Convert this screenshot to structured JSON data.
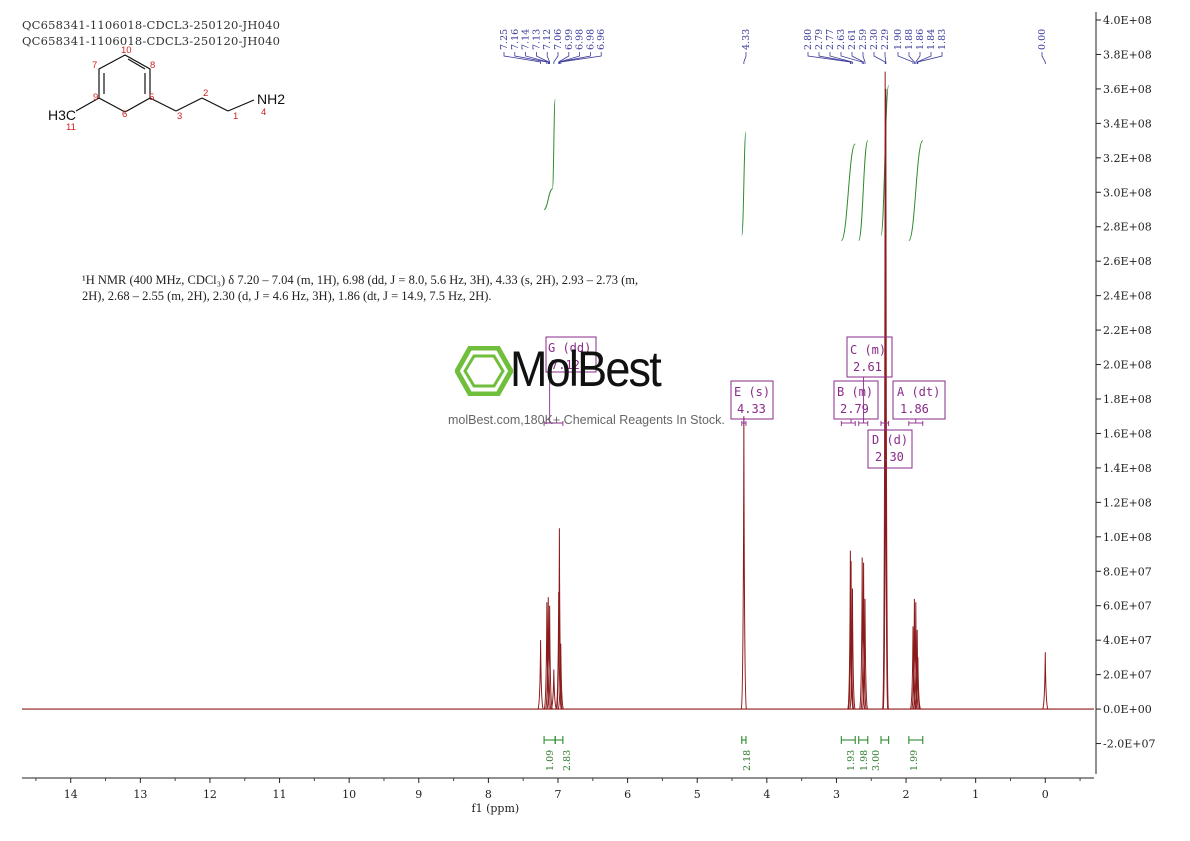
{
  "header": {
    "line1": "QC658341-1106018-CDCL3-250120-JH040",
    "line2": "QC658341-1106018-CDCL3-250120-JH040"
  },
  "molecule": {
    "atoms": [
      {
        "id": "h3c",
        "label": "H3C"
      },
      {
        "id": "nh2",
        "label": "NH2"
      }
    ],
    "numbers": [
      "10",
      "7",
      "8",
      "9",
      "5",
      "6",
      "3",
      "2",
      "1",
      "4",
      "11"
    ]
  },
  "nmr_text": "¹H NMR (400 MHz, CDCl₃) δ 7.20 – 7.04 (m, 1H), 6.98 (dd, J = 8.0, 5.6 Hz, 3H), 4.33 (s, 2H), 2.93 – 2.73 (m, 2H), 2.68 – 2.55 (m, 2H), 2.30 (d, J = 4.6 Hz, 3H), 1.86 (dt, J = 14.9, 7.5 Hz, 2H).",
  "watermark": {
    "brand": "MolBest",
    "line": "molBest.com,180K+ Chemical Reagents In Stock."
  },
  "colors": {
    "spectrum": "#8b1a1a",
    "integral": "#2e8b2e",
    "multiplet": "#8a2b8a",
    "peak_label": "#3a3a9a",
    "logo_green": "#6fbe3c"
  },
  "chart_data": {
    "type": "line",
    "title": "",
    "xlabel": "f1 (ppm)",
    "ylabel": "",
    "xlim": [
      14.7,
      -0.7
    ],
    "ylim": [
      -40000000,
      400000000
    ],
    "x_ticks": [
      14,
      13,
      12,
      11,
      10,
      9,
      8,
      7,
      6,
      5,
      4,
      3,
      2,
      1,
      0
    ],
    "y_ticks": [
      {
        "v": 400000000,
        "label": "4.0E+08"
      },
      {
        "v": 380000000,
        "label": "3.8E+08"
      },
      {
        "v": 360000000,
        "label": "3.6E+08"
      },
      {
        "v": 340000000,
        "label": "3.4E+08"
      },
      {
        "v": 320000000,
        "label": "3.2E+08"
      },
      {
        "v": 300000000,
        "label": "3.0E+08"
      },
      {
        "v": 280000000,
        "label": "2.8E+08"
      },
      {
        "v": 260000000,
        "label": "2.6E+08"
      },
      {
        "v": 240000000,
        "label": "2.4E+08"
      },
      {
        "v": 220000000,
        "label": "2.2E+08"
      },
      {
        "v": 200000000,
        "label": "2.0E+08"
      },
      {
        "v": 180000000,
        "label": "1.8E+08"
      },
      {
        "v": 160000000,
        "label": "1.6E+08"
      },
      {
        "v": 140000000,
        "label": "1.4E+08"
      },
      {
        "v": 120000000,
        "label": "1.2E+08"
      },
      {
        "v": 100000000,
        "label": "1.0E+08"
      },
      {
        "v": 80000000,
        "label": "8.0E+07"
      },
      {
        "v": 60000000,
        "label": "6.0E+07"
      },
      {
        "v": 40000000,
        "label": "4.0E+07"
      },
      {
        "v": 20000000,
        "label": "2.0E+07"
      },
      {
        "v": 0,
        "label": "0.0E+00"
      },
      {
        "v": -20000000,
        "label": "-2.0E+07"
      }
    ],
    "peaks": [
      {
        "ppm": 7.25,
        "h": 40000000
      },
      {
        "ppm": 7.16,
        "h": 62000000
      },
      {
        "ppm": 7.14,
        "h": 65000000
      },
      {
        "ppm": 7.12,
        "h": 60000000
      },
      {
        "ppm": 7.06,
        "h": 23000000
      },
      {
        "ppm": 6.99,
        "h": 68000000
      },
      {
        "ppm": 6.98,
        "h": 105000000
      },
      {
        "ppm": 6.96,
        "h": 38000000
      },
      {
        "ppm": 4.33,
        "h": 170000000
      },
      {
        "ppm": 2.8,
        "h": 92000000
      },
      {
        "ppm": 2.79,
        "h": 86000000
      },
      {
        "ppm": 2.77,
        "h": 70000000
      },
      {
        "ppm": 2.63,
        "h": 88000000
      },
      {
        "ppm": 2.61,
        "h": 85000000
      },
      {
        "ppm": 2.59,
        "h": 64000000
      },
      {
        "ppm": 2.3,
        "h": 370000000
      },
      {
        "ppm": 2.29,
        "h": 360000000
      },
      {
        "ppm": 1.9,
        "h": 48000000
      },
      {
        "ppm": 1.88,
        "h": 64000000
      },
      {
        "ppm": 1.86,
        "h": 62000000
      },
      {
        "ppm": 1.84,
        "h": 46000000
      },
      {
        "ppm": 1.83,
        "h": 30000000
      },
      {
        "ppm": 0.0,
        "h": 33000000
      }
    ],
    "peak_labels": [
      "7.25",
      "7.16",
      "7.14",
      "7.13",
      "7.12",
      "7.06",
      "6.99",
      "6.98",
      "6.98",
      "6.96",
      "4.33",
      "2.80",
      "2.79",
      "2.77",
      "2.63",
      "2.61",
      "2.59",
      "2.30",
      "2.29",
      "1.90",
      "1.88",
      "1.86",
      "1.84",
      "1.83",
      "0.00"
    ],
    "multiplets": [
      {
        "letter": "G",
        "mult": "dd",
        "shift": "7.12"
      },
      {
        "letter": "E",
        "mult": "s",
        "shift": "4.33"
      },
      {
        "letter": "C",
        "mult": "m",
        "shift": "2.61"
      },
      {
        "letter": "B",
        "mult": "m",
        "shift": "2.79"
      },
      {
        "letter": "A",
        "mult": "dt",
        "shift": "1.86"
      },
      {
        "letter": "D",
        "mult": "d",
        "shift": "2.30"
      }
    ],
    "integrals": [
      {
        "from": 7.2,
        "to": 7.04,
        "value": "1.09"
      },
      {
        "from": 7.04,
        "to": 6.93,
        "value": "2.83"
      },
      {
        "from": 4.36,
        "to": 4.3,
        "value": "2.18"
      },
      {
        "from": 2.93,
        "to": 2.73,
        "value": "1.93"
      },
      {
        "from": 2.68,
        "to": 2.55,
        "value": "1.98"
      },
      {
        "from": 2.36,
        "to": 2.25,
        "value": "3.00"
      },
      {
        "from": 1.96,
        "to": 1.76,
        "value": "1.99"
      }
    ]
  }
}
